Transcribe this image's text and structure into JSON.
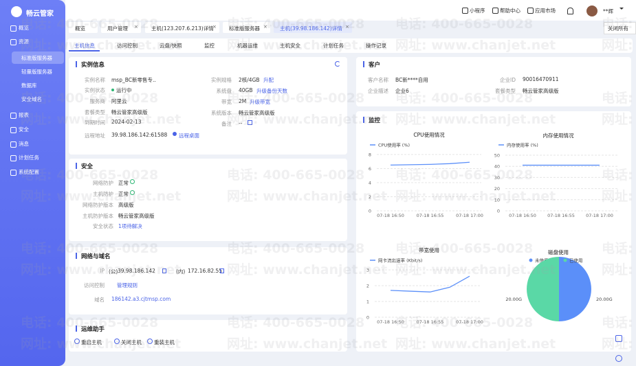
{
  "sidebar": {
    "brand": "畅云管家",
    "menu": [
      "概览",
      "资源",
      "报表",
      "安全",
      "消息",
      "计划任务",
      "系统配置"
    ],
    "submenu": [
      "标准版服务器",
      "轻量版服务器",
      "数据库",
      "安全域名"
    ]
  },
  "topbar": {
    "links": [
      "小程序",
      "帮助中心",
      "应用市场"
    ],
    "user": "**辉"
  },
  "tabs": {
    "items": [
      "概览",
      "用户管理",
      "主机(123.207.6.213)详情",
      "标准版服务器",
      "主机(39.98.186.142)详情"
    ],
    "close_all": "关闭所有"
  },
  "subtabs": [
    "主机信息",
    "访问控制",
    "云盘/快照",
    "监控",
    "机器运维",
    "主机安全",
    "计划任务",
    "操作记录"
  ],
  "instance": {
    "title": "实例信息",
    "left": [
      {
        "label": "实例名称",
        "value": "msp_BC新零售专.."
      },
      {
        "label": "实例状态",
        "value": "运行中"
      },
      {
        "label": "服务商",
        "value": "阿里云"
      },
      {
        "label": "套餐类型",
        "value": "畅云管家高级版"
      },
      {
        "label": "到期时间",
        "value": "2024-02-13"
      },
      {
        "label": "远程地址",
        "value": "39.98.186.142:61588",
        "link": "远程桌面"
      }
    ],
    "right": [
      {
        "label": "实例规格",
        "value": "2核/4GB",
        "link": "升配"
      },
      {
        "label": "系统盘",
        "value": "40GB",
        "link": "升级备份天数"
      },
      {
        "label": "带宽",
        "value": "2M",
        "link": "升级带宽"
      },
      {
        "label": "系统版本",
        "value": "畅云管家高级版"
      },
      {
        "label": "备注",
        "value": "--"
      }
    ]
  },
  "security": {
    "title": "安全",
    "rows": [
      {
        "label": "网络防护",
        "value": "正常"
      },
      {
        "label": "主机防护",
        "value": "正常"
      },
      {
        "label": "网络防护版本",
        "value": "高级版"
      },
      {
        "label": "主机防护版本",
        "value": "畅云管家高级版"
      },
      {
        "label": "安全状态",
        "link": "1项待解决"
      }
    ]
  },
  "network": {
    "title": "网络与域名",
    "ip_label": "IP",
    "public_tag": "(公)",
    "public_ip": "39.98.186.142",
    "private_tag": "(内)",
    "private_ip": "172.16.82.55",
    "access_label": "访问控制",
    "access_link": "管理规则",
    "domain_label": "域名",
    "domain": "186142.a3.cjtmsp.com"
  },
  "ops": {
    "title": "运维助手",
    "actions": [
      "重启主机",
      "关闭主机",
      "重装主机"
    ]
  },
  "customer": {
    "title": "客户",
    "rows": [
      {
        "label": "客户名称",
        "value": "BC新****自用"
      },
      {
        "label": "企业ID",
        "value": "90016470911"
      },
      {
        "label": "企业描述",
        "value": "企业6"
      },
      {
        "label": "套餐类型",
        "value": "畅云管家高级版"
      }
    ]
  },
  "monitor": {
    "title": "监控",
    "cpu": {
      "type": "line",
      "title": "CPU使用情况",
      "categories": [
        "07-18 16:50",
        null,
        "07-18 16:55",
        null,
        "07-18 17:00"
      ],
      "series": [
        {
          "name": "CPU使用率 (%)",
          "color": "#5b8ff9",
          "values": [
            6.5,
            6.55,
            6.6,
            6.7,
            6.9
          ]
        }
      ],
      "ylim": [
        0,
        8
      ],
      "yticks": [
        0,
        2,
        4,
        6,
        8
      ]
    },
    "memory": {
      "type": "line",
      "title": "内存使用情况",
      "categories": [
        "07-18 16:50",
        null,
        "07-18 16:55",
        null,
        "07-18 17:00"
      ],
      "series": [
        {
          "name": "内存使用率 (%)",
          "color": "#5b8ff9",
          "values": [
            41,
            41,
            41,
            41,
            41
          ]
        }
      ],
      "ylim": [
        0,
        50
      ],
      "yticks": [
        0,
        10,
        20,
        30,
        40,
        50
      ]
    },
    "bandwidth": {
      "type": "line",
      "title": "带宽使用",
      "categories": [
        "07-18 16:50",
        null,
        "07-18 16:55",
        null,
        "07-18 17:00"
      ],
      "series": [
        {
          "name": "网卡流出速率 (Kbit/s)",
          "color": "#5b8ff9",
          "values": [
            1.7,
            1.65,
            1.6,
            1.9,
            2.6
          ]
        }
      ],
      "ylim": [
        0,
        3
      ],
      "yticks": [
        0,
        1,
        2,
        3
      ]
    },
    "disk": {
      "type": "pie",
      "title": "磁盘使用",
      "categories": [
        "未使用",
        "已使用"
      ],
      "colors": [
        "#5b8ff9",
        "#5ad8a6"
      ],
      "values": [
        20,
        20
      ],
      "value_labels": [
        "20.00G",
        "20.00G"
      ]
    }
  },
  "watermark": {
    "phone": "电话: 400-665-0028",
    "site": "网址: www.chanjet.net"
  }
}
